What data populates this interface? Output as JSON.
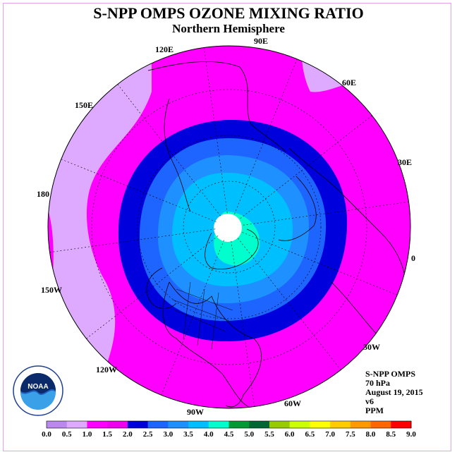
{
  "title": "S-NPP OMPS OZONE MIXING RATIO",
  "subtitle": "Northern Hemisphere",
  "logo": {
    "text": "NOAA",
    "ring_text": "NATIONAL OCEANIC AND ATMOSPHERIC ADMINISTRATION · U.S. DEPARTMENT OF COMMERCE",
    "icon": "noaa-logo"
  },
  "longitude_labels": [
    "90E",
    "60E",
    "30E",
    "0",
    "30W",
    "60W",
    "90W",
    "120W",
    "150W",
    "180",
    "150E",
    "120E"
  ],
  "info": {
    "instrument": "S-NPP OMPS",
    "level": "70 hPa",
    "date": "August 19, 2015",
    "version": "v6",
    "units": "PPM"
  },
  "colorbar": {
    "ticks": [
      "0.0",
      "0.5",
      "1.0",
      "1.5",
      "2.0",
      "2.5",
      "3.0",
      "3.5",
      "4.0",
      "4.5",
      "5.0",
      "5.5",
      "6.0",
      "6.5",
      "7.0",
      "7.5",
      "8.0",
      "8.5",
      "9.0"
    ],
    "colors": [
      "#bb88ee",
      "#ddaaff",
      "#ff00ff",
      "#ee00ee",
      "#0000dd",
      "#1e64ff",
      "#1e90ff",
      "#00bfff",
      "#00ffcc",
      "#009933",
      "#006633",
      "#99cc00",
      "#ccff00",
      "#ffff00",
      "#ffcc00",
      "#ff9900",
      "#ff6600",
      "#ff0000",
      "#996633"
    ]
  },
  "colors": {
    "outer_low": "#ddaaff",
    "band_1_0": "#ff00ff",
    "band_1_5": "#0000dd",
    "band_2_0": "#1e64ff",
    "band_2_5": "#1e90ff",
    "band_3_0": "#00bfff",
    "band_3_5": "#00ffcc",
    "pole_gap": "#ffffff"
  }
}
